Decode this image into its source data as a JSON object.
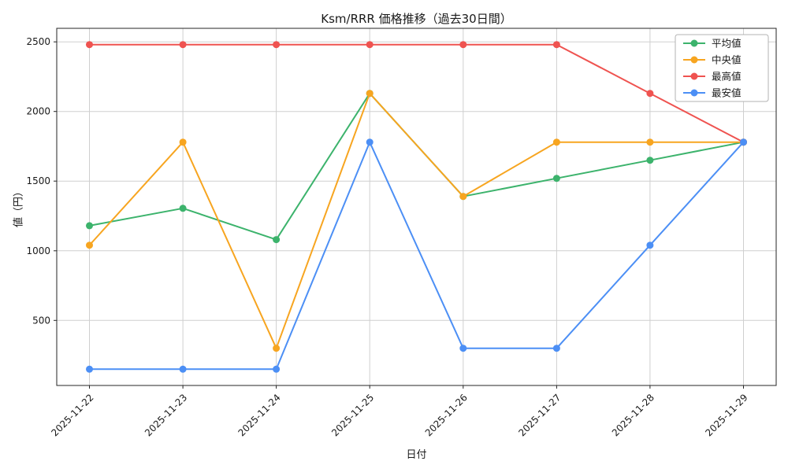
{
  "figure": {
    "title": "Ksm/RRR 価格推移（過去30日間）",
    "xlabel": "日付",
    "ylabel": "値（円）"
  },
  "chart_data": {
    "type": "line",
    "title": "Ksm/RRR 価格推移（過去30日間）",
    "xlabel": "日付",
    "ylabel": "値（円）",
    "categories": [
      "2025-11-22",
      "2025-11-23",
      "2025-11-24",
      "2025-11-25",
      "2025-11-26",
      "2025-11-27",
      "2025-11-28",
      "2025-11-29"
    ],
    "series": [
      {
        "id": "average",
        "name": "平均値",
        "color": "#3cb36c",
        "values": [
          1180,
          1305,
          1080,
          2130,
          1390,
          1520,
          1650,
          1780
        ]
      },
      {
        "id": "median",
        "name": "中央値",
        "color": "#f7a520",
        "values": [
          1040,
          1780,
          300,
          2130,
          1390,
          1780,
          1780,
          1780
        ]
      },
      {
        "id": "highest",
        "name": "最高値",
        "color": "#ef5350",
        "values": [
          2480,
          2480,
          2480,
          2480,
          2480,
          2480,
          2130,
          1780
        ]
      },
      {
        "id": "lowest",
        "name": "最安値",
        "color": "#4c8ff5",
        "values": [
          150,
          150,
          150,
          1780,
          300,
          300,
          1040,
          1780
        ]
      }
    ],
    "yticks": [
      500,
      1000,
      1500,
      2000,
      2500
    ],
    "ylim": [
      33,
      2597
    ],
    "grid": true,
    "legend_position": "upper right",
    "grid_color": "#cfcfcf",
    "spine_color": "#262626"
  }
}
